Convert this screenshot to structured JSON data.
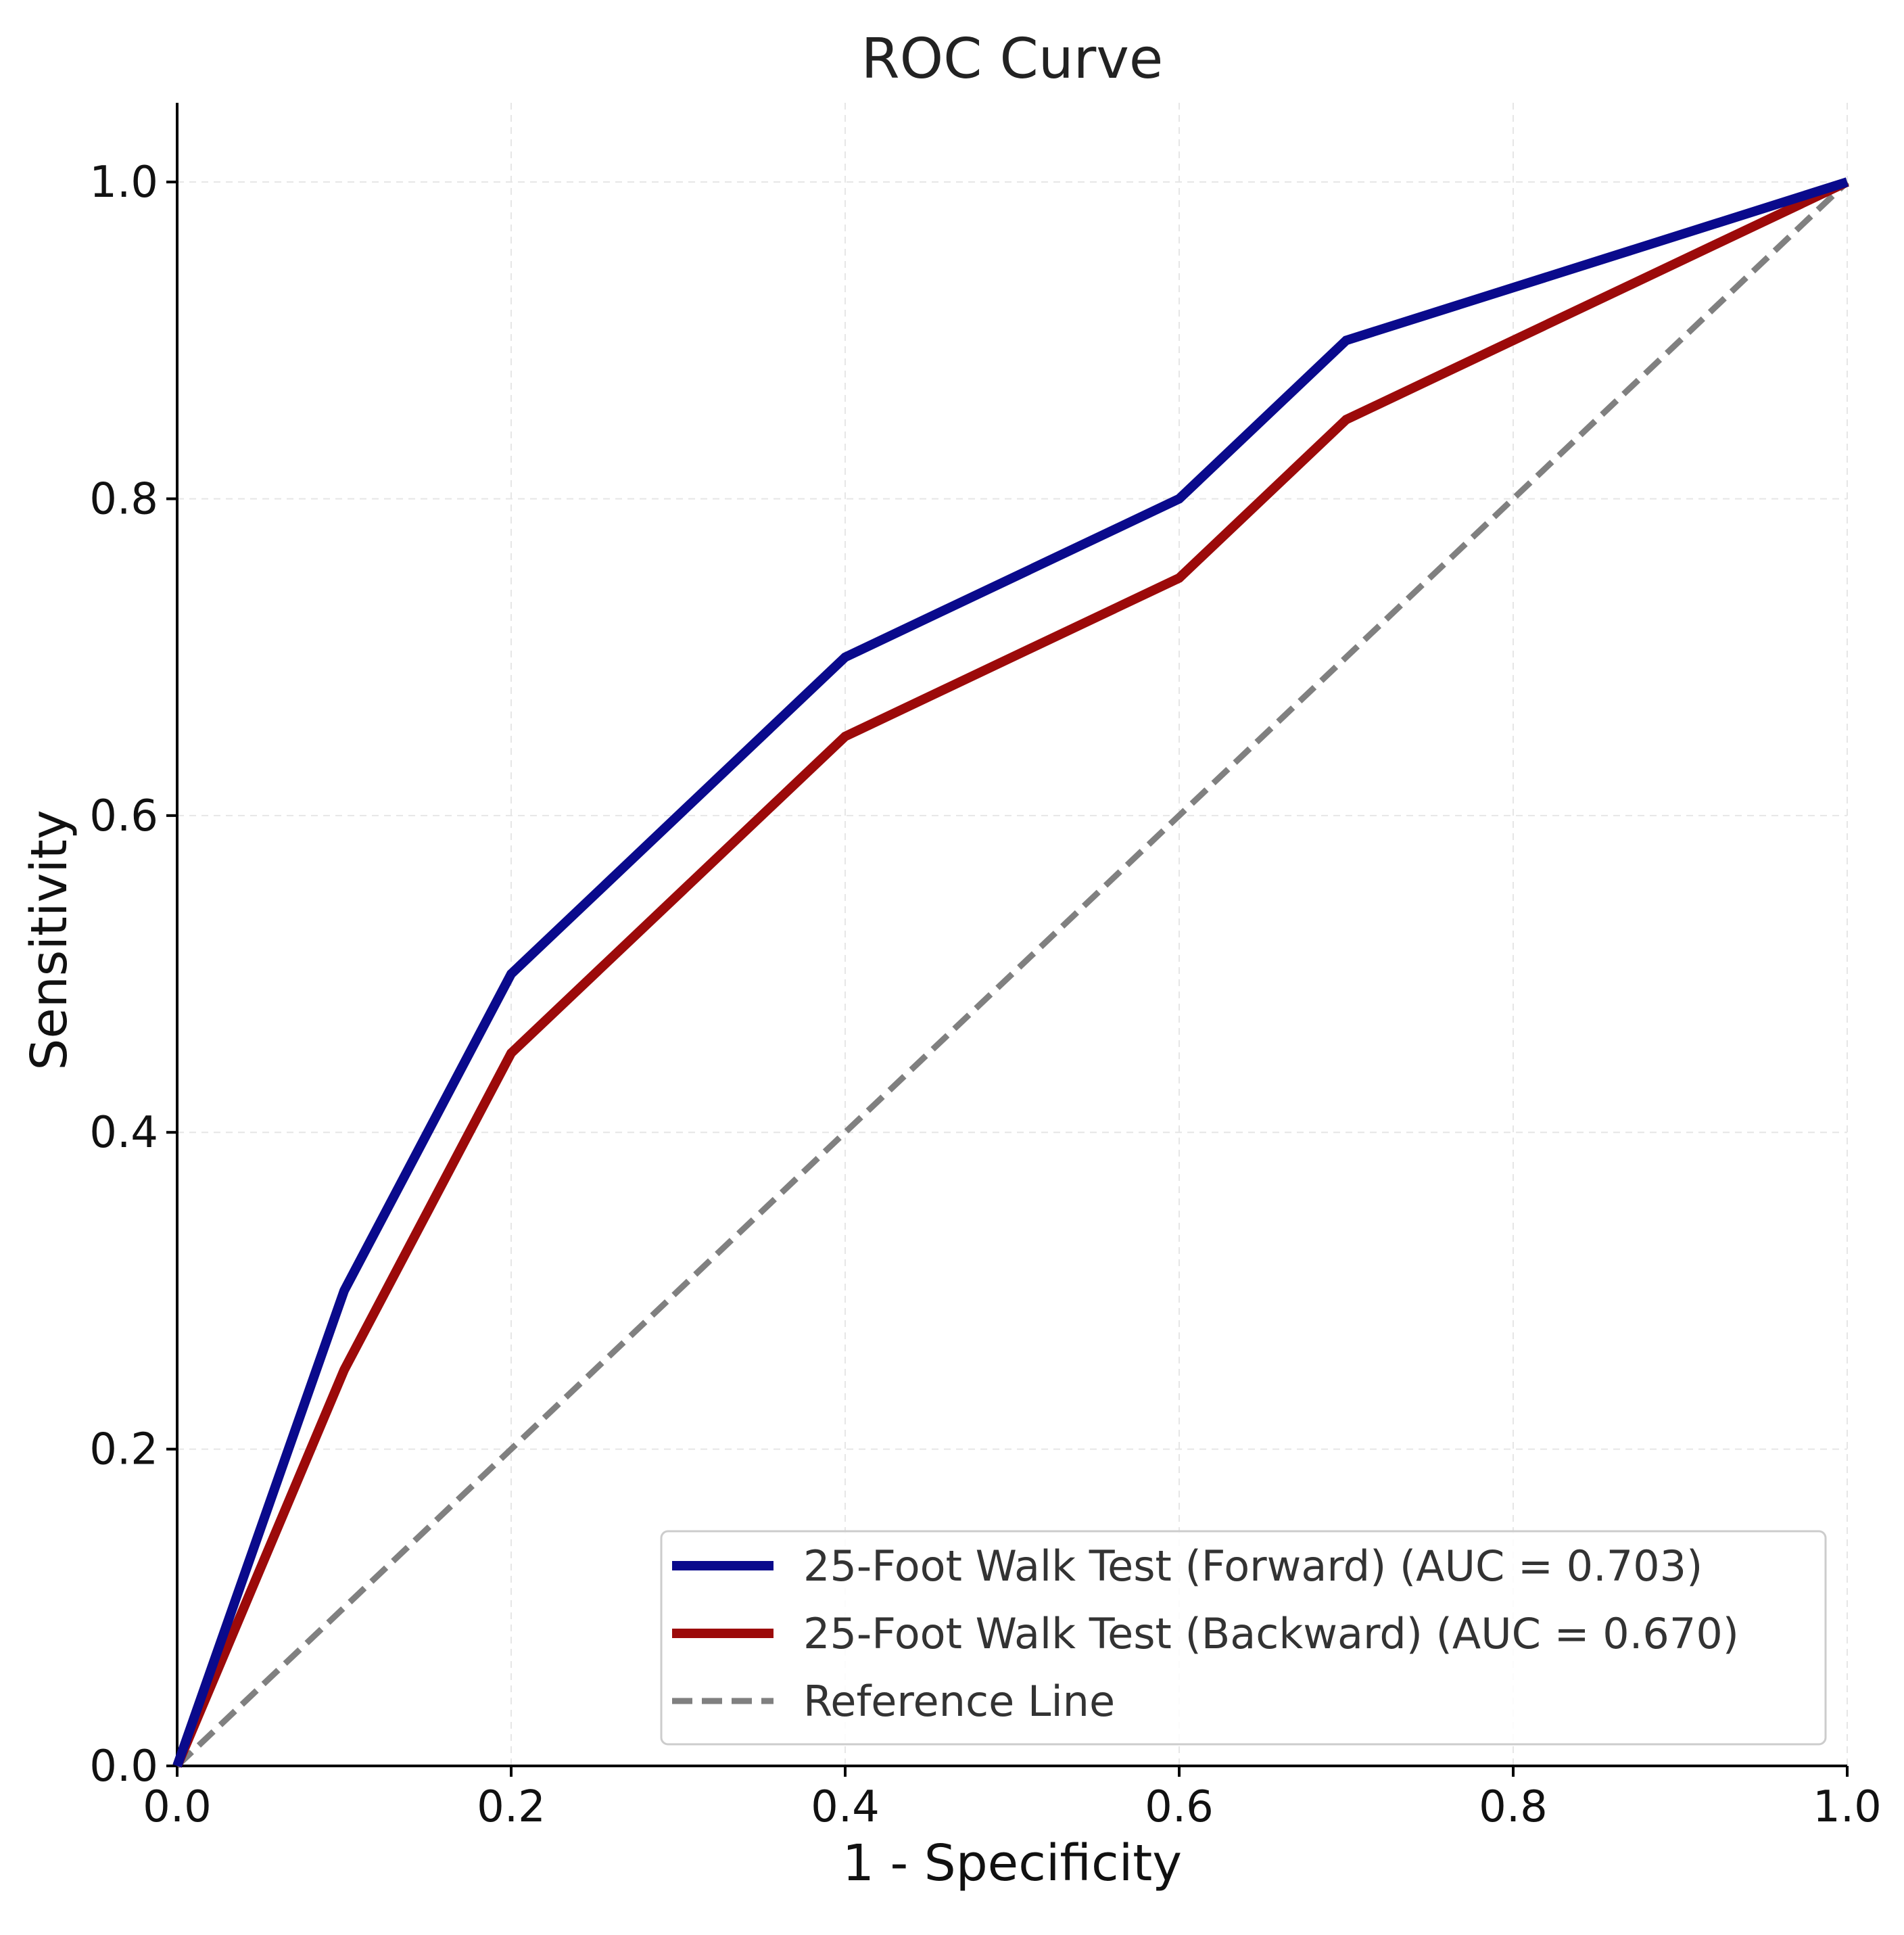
{
  "chart_data": {
    "type": "line",
    "title": "ROC Curve",
    "xlabel": "1 - Specificity",
    "ylabel": "Sensitivity",
    "xlim": [
      0,
      1
    ],
    "ylim": [
      0,
      1.05
    ],
    "x_ticks": [
      "0.0",
      "0.2",
      "0.4",
      "0.6",
      "0.8",
      "1.0"
    ],
    "y_ticks": [
      "0.0",
      "0.2",
      "0.4",
      "0.6",
      "0.8",
      "1.0"
    ],
    "grid": true,
    "legend_position": "bottom-right",
    "series": [
      {
        "name": "25-Foot Walk Test (Forward) (AUC = 0.703)",
        "color": "#0a0a8c",
        "style": "solid",
        "x": [
          0.0,
          0.1,
          0.2,
          0.4,
          0.6,
          0.7,
          1.0
        ],
        "y": [
          0.0,
          0.3,
          0.5,
          0.7,
          0.8,
          0.9,
          1.0
        ]
      },
      {
        "name": "25-Foot Walk Test (Backward) (AUC = 0.670)",
        "color": "#9c0a0a",
        "style": "solid",
        "x": [
          0.0,
          0.1,
          0.2,
          0.4,
          0.6,
          0.7,
          1.0
        ],
        "y": [
          0.0,
          0.25,
          0.45,
          0.65,
          0.75,
          0.85,
          1.0
        ]
      },
      {
        "name": "Reference Line",
        "color": "#808080",
        "style": "dashed",
        "x": [
          0.0,
          1.0
        ],
        "y": [
          0.0,
          1.0
        ]
      }
    ]
  }
}
